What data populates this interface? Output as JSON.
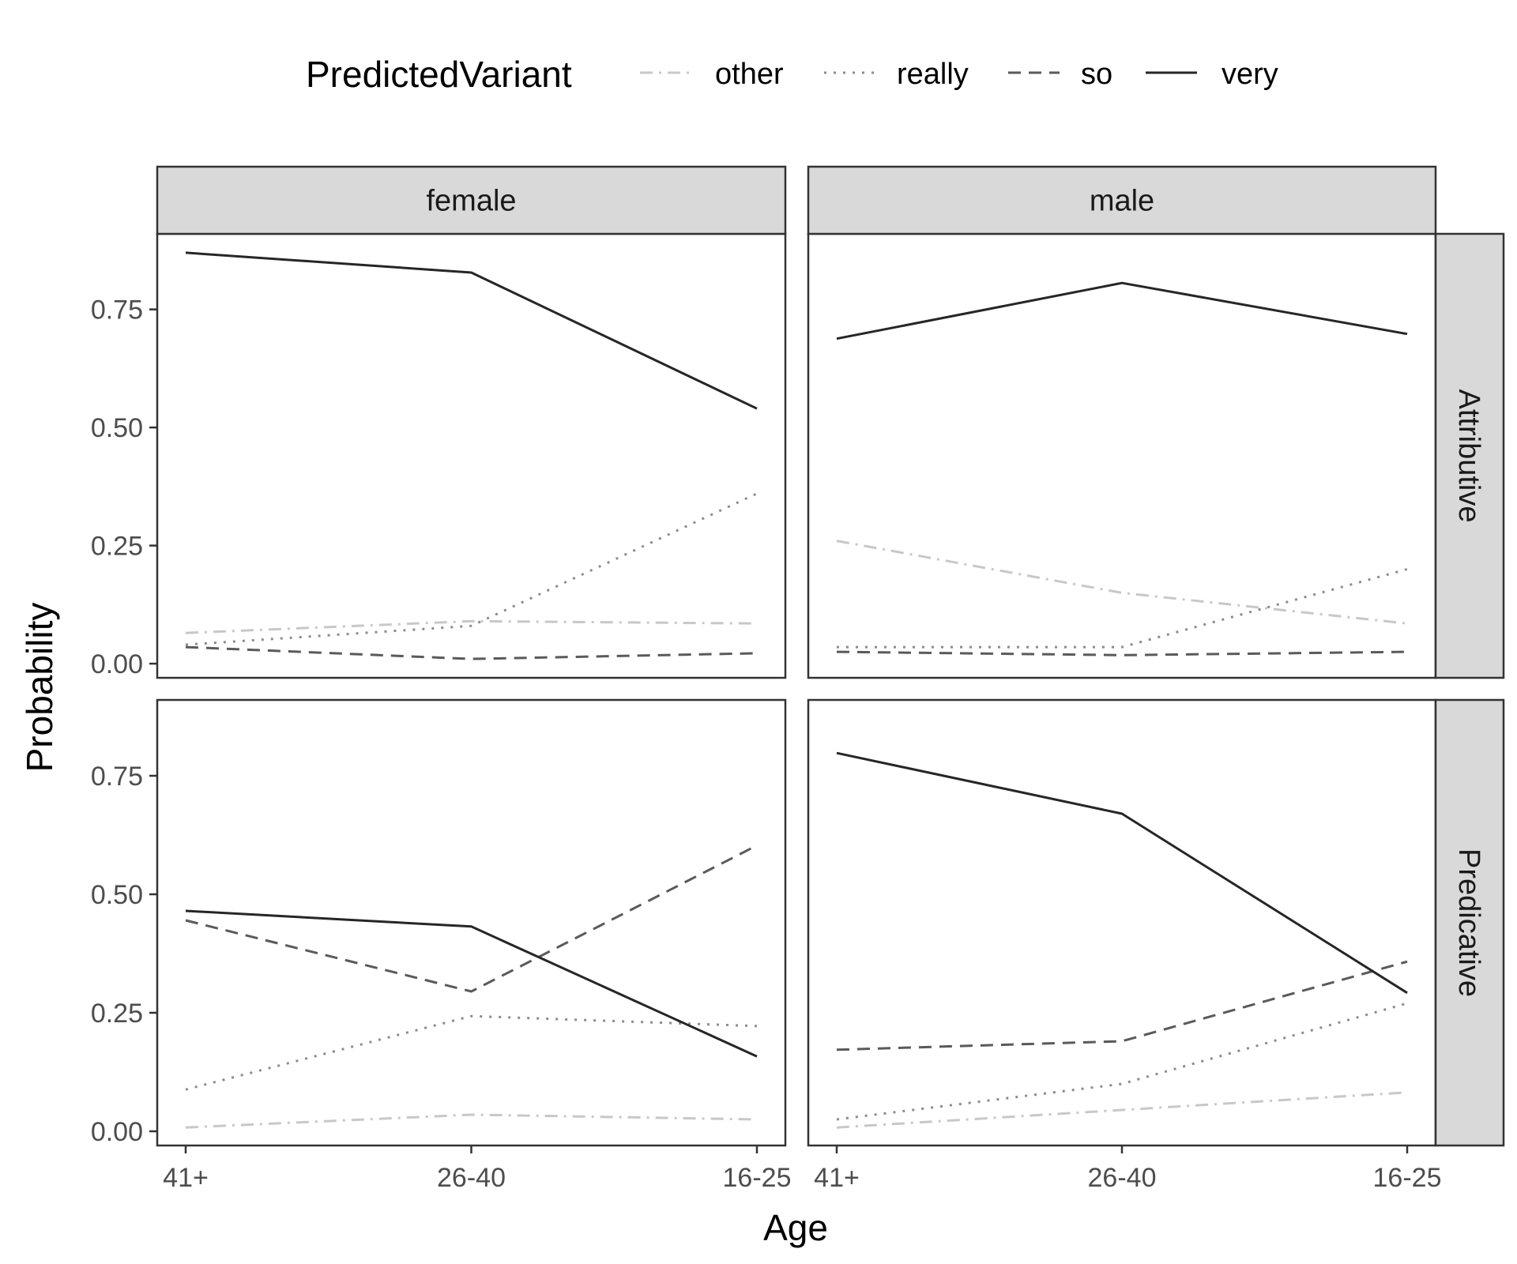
{
  "chart_data": {
    "type": "line",
    "xlabel": "Age",
    "ylabel": "Probability",
    "categories": [
      "41+",
      "26-40",
      "16-25"
    ],
    "yticks": [
      "0.00",
      "0.25",
      "0.50",
      "0.75"
    ],
    "ylim": [
      -0.03,
      0.91
    ],
    "legend": {
      "title": "PredictedVariant",
      "position": "top",
      "items": [
        {
          "name": "other",
          "linetype": "dashdot",
          "color": "#c8c8c8"
        },
        {
          "name": "really",
          "linetype": "dotted",
          "color": "#8c8c8c"
        },
        {
          "name": "so",
          "linetype": "dashed",
          "color": "#5a5a5a"
        },
        {
          "name": "very",
          "linetype": "solid",
          "color": "#262626"
        }
      ]
    },
    "facet_cols": [
      "female",
      "male"
    ],
    "facet_rows": [
      "Attributive",
      "Predicative"
    ],
    "grid": false,
    "panels": [
      {
        "col": "female",
        "row": "Attributive",
        "series": [
          {
            "name": "other",
            "values": [
              0.065,
              0.09,
              0.085
            ]
          },
          {
            "name": "really",
            "values": [
              0.04,
              0.08,
              0.36
            ]
          },
          {
            "name": "so",
            "values": [
              0.035,
              0.01,
              0.022
            ]
          },
          {
            "name": "very",
            "values": [
              0.87,
              0.828,
              0.54
            ]
          }
        ]
      },
      {
        "col": "male",
        "row": "Attributive",
        "series": [
          {
            "name": "other",
            "values": [
              0.26,
              0.15,
              0.085
            ]
          },
          {
            "name": "really",
            "values": [
              0.035,
              0.035,
              0.2
            ]
          },
          {
            "name": "so",
            "values": [
              0.025,
              0.018,
              0.025
            ]
          },
          {
            "name": "very",
            "values": [
              0.688,
              0.806,
              0.698
            ]
          }
        ]
      },
      {
        "col": "female",
        "row": "Predicative",
        "series": [
          {
            "name": "other",
            "values": [
              0.008,
              0.035,
              0.025
            ]
          },
          {
            "name": "really",
            "values": [
              0.088,
              0.243,
              0.222
            ]
          },
          {
            "name": "so",
            "values": [
              0.445,
              0.295,
              0.603
            ]
          },
          {
            "name": "very",
            "values": [
              0.465,
              0.432,
              0.158
            ]
          }
        ]
      },
      {
        "col": "male",
        "row": "Predicative",
        "series": [
          {
            "name": "other",
            "values": [
              0.008,
              0.045,
              0.082
            ]
          },
          {
            "name": "really",
            "values": [
              0.025,
              0.1,
              0.27
            ]
          },
          {
            "name": "so",
            "values": [
              0.172,
              0.19,
              0.358
            ]
          },
          {
            "name": "very",
            "values": [
              0.798,
              0.67,
              0.292
            ]
          }
        ]
      }
    ]
  }
}
